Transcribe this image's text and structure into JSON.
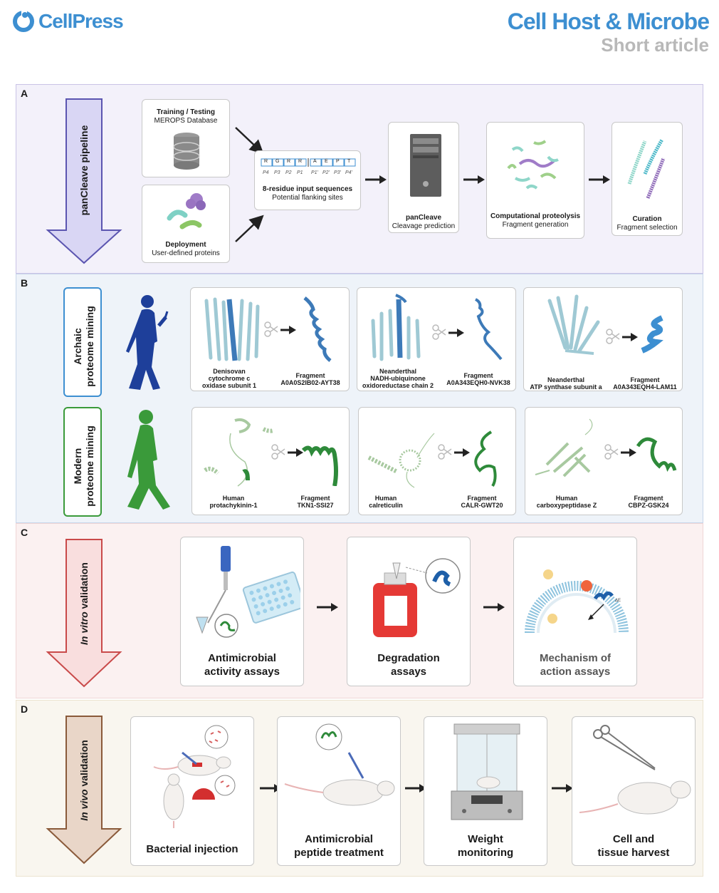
{
  "header": {
    "logo": "CellPress",
    "journal": "Cell Host & Microbe",
    "article_type": "Short article"
  },
  "panelA": {
    "label": "A",
    "pipeline": "panCleave pipeline",
    "training_title": "Training / Testing",
    "training_sub": "MEROPS Database",
    "deploy_title": "Deployment",
    "deploy_sub": "User-defined proteins",
    "residues_top": [
      "R",
      "G",
      "R",
      "R",
      "A",
      "E",
      "P",
      "T"
    ],
    "residues_bottom": [
      "P4",
      "P3",
      "P2",
      "P1",
      "P1'",
      "P2'",
      "P3'",
      "P4'"
    ],
    "input_title": "8-residue input sequences",
    "input_sub": "Potential flanking sites",
    "cleave_title": "panCleave",
    "cleave_sub": "Cleavage prediction",
    "prot_title": "Computational proteolysis",
    "prot_sub": "Fragment generation",
    "cur_title": "Curation",
    "cur_sub": "Fragment selection"
  },
  "panelB": {
    "label": "B",
    "archaic": "Archaic proteome mining",
    "archaic_l1": "Archaic",
    "archaic_l2": "proteome mining",
    "modern_l1": "Modern",
    "modern_l2": "proteome mining",
    "archaic_items": [
      {
        "protein": "Denisovan cytochrome c oxidase subunit 1",
        "p1": "Denisovan",
        "p2": "cytochrome c",
        "p3": "oxidase subunit 1",
        "frag": "Fragment",
        "frag_id": "A0A0S2IB02-AYT38"
      },
      {
        "protein": "",
        "p1": "Neanderthal",
        "p2": "NADH-ubiquinone",
        "p3": "oxidoreductase chain 2",
        "frag": "Fragment",
        "frag_id": "A0A343EQH0-NVK38"
      },
      {
        "protein": "",
        "p1": "Neanderthal",
        "p2": "ATP synthase subunit a",
        "p3": "",
        "frag": "Fragment",
        "frag_id": "A0A343EQH4-LAM11"
      }
    ],
    "modern_items": [
      {
        "p1": "Human",
        "p2": "protachykinin-1",
        "frag": "Fragment",
        "frag_id": "TKN1-SSI27"
      },
      {
        "p1": "Human",
        "p2": "calreticulin",
        "frag": "Fragment",
        "frag_id": "CALR-GWT20"
      },
      {
        "p1": "Human",
        "p2": "carboxypeptidase Z",
        "frag": "Fragment",
        "frag_id": "CBPZ-GSK24"
      }
    ]
  },
  "panelC": {
    "label": "C",
    "arrow_italic": "In vitro",
    "arrow_rest": " validation",
    "steps": [
      {
        "l1": "Antimicrobial",
        "l2": "activity assays"
      },
      {
        "l1": "Degradation",
        "l2": "assays"
      },
      {
        "l1": "Mechanism of",
        "l2": "action assays"
      }
    ],
    "delta_e": "ΔE"
  },
  "panelD": {
    "label": "D",
    "arrow_italic": "In vivo",
    "arrow_rest": " validation",
    "steps": [
      {
        "l1": "Bacterial injection",
        "l2": ""
      },
      {
        "l1": "Antimicrobial",
        "l2": "peptide treatment"
      },
      {
        "l1": "Weight",
        "l2": "monitoring"
      },
      {
        "l1": "Cell and",
        "l2": "tissue harvest"
      }
    ]
  },
  "colors": {
    "brand": "#3d8fd1",
    "panelA_bg": "#f3f1fa",
    "panelB_bg": "#eef3f9",
    "panelC_bg": "#fbf1f1",
    "panelD_bg": "#f9f6ef",
    "archaic": "#1e3f9a",
    "modern": "#3a9a3a"
  }
}
